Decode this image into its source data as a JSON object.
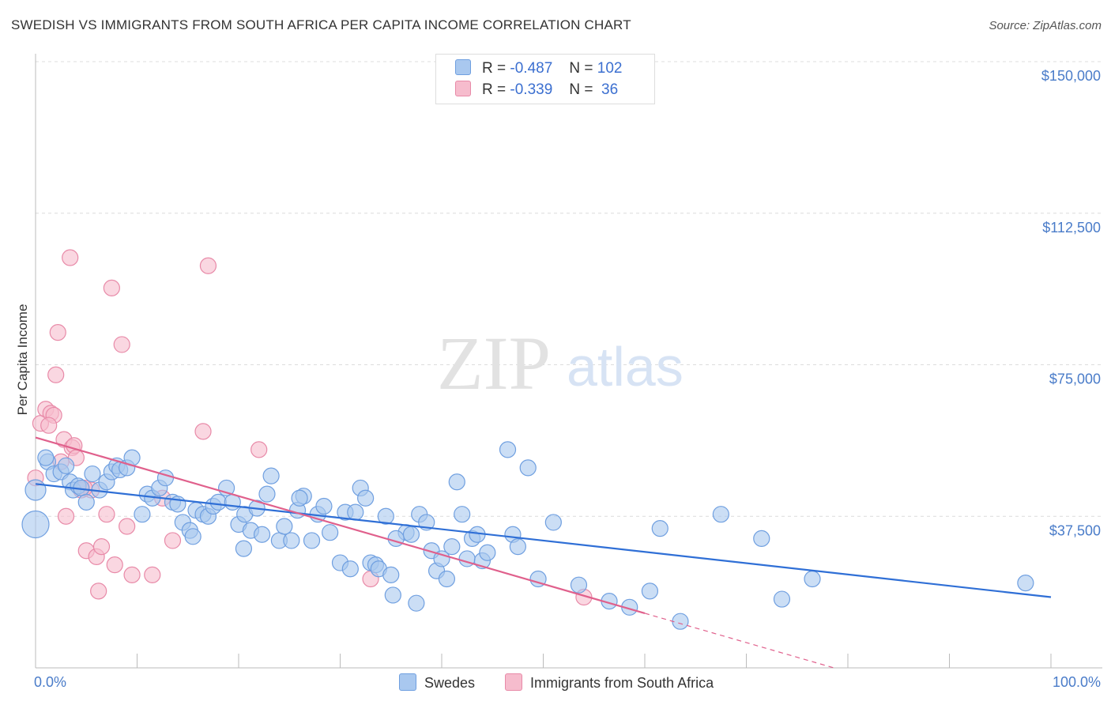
{
  "title": "SWEDISH VS IMMIGRANTS FROM SOUTH AFRICA PER CAPITA INCOME CORRELATION CHART",
  "source": "Source: ZipAtlas.com",
  "watermark": {
    "zip": "ZIP",
    "atlas": "atlas"
  },
  "legend": {
    "rows": [
      {
        "r_label": "R =",
        "r_value": "-0.487",
        "n_label": "N =",
        "n_value": "102"
      },
      {
        "r_label": "R =",
        "r_value": "-0.339",
        "n_label": "N =",
        "n_value": " 36"
      }
    ]
  },
  "colors": {
    "swedes_fill": "#a9c8ef",
    "swedes_stroke": "#6f9fe0",
    "swedes_line": "#2f6fd6",
    "sa_fill": "#f6bccd",
    "sa_stroke": "#e88aa8",
    "sa_line": "#e0608c",
    "tick_text": "#4a7cc9"
  },
  "chart_data": {
    "type": "scatter",
    "title": "SWEDISH VS IMMIGRANTS FROM SOUTH AFRICA PER CAPITA INCOME CORRELATION CHART",
    "xlabel": "",
    "ylabel": "Per Capita Income",
    "xlim": [
      0,
      100
    ],
    "ylim": [
      0,
      150000
    ],
    "x_tick_labels": [
      "0.0%",
      "100.0%"
    ],
    "y_ticks": [
      37500,
      75000,
      112500,
      150000
    ],
    "y_tick_labels": [
      "$37,500",
      "$75,000",
      "$112,500",
      "$150,000"
    ],
    "grid": true,
    "legend_position": "top-center",
    "series": [
      {
        "name": "Swedes",
        "points": [
          [
            1.2,
            51000
          ],
          [
            1.8,
            48000
          ],
          [
            2.5,
            48500
          ],
          [
            3.0,
            50000
          ],
          [
            3.4,
            46000
          ],
          [
            3.7,
            44000
          ],
          [
            4.2,
            45000
          ],
          [
            4.5,
            44500
          ],
          [
            5.0,
            41000
          ],
          [
            5.6,
            48000
          ],
          [
            6.3,
            44000
          ],
          [
            7.0,
            46000
          ],
          [
            7.5,
            48500
          ],
          [
            8.0,
            50000
          ],
          [
            8.3,
            49000
          ],
          [
            9.0,
            49500
          ],
          [
            9.5,
            52000
          ],
          [
            10.5,
            38000
          ],
          [
            11.0,
            43000
          ],
          [
            11.5,
            42000
          ],
          [
            12.2,
            44500
          ],
          [
            12.8,
            47000
          ],
          [
            13.5,
            41000
          ],
          [
            14.0,
            40500
          ],
          [
            14.5,
            36000
          ],
          [
            15.2,
            34000
          ],
          [
            15.8,
            39000
          ],
          [
            16.5,
            38000
          ],
          [
            17.0,
            37500
          ],
          [
            17.5,
            40000
          ],
          [
            18.0,
            41000
          ],
          [
            18.8,
            44500
          ],
          [
            19.4,
            41000
          ],
          [
            20.0,
            35500
          ],
          [
            20.6,
            38000
          ],
          [
            21.2,
            34000
          ],
          [
            21.8,
            39500
          ],
          [
            22.3,
            33000
          ],
          [
            22.8,
            43000
          ],
          [
            23.2,
            47500
          ],
          [
            24.0,
            31500
          ],
          [
            24.5,
            35000
          ],
          [
            25.2,
            31500
          ],
          [
            25.8,
            39000
          ],
          [
            26.4,
            42500
          ],
          [
            27.2,
            31500
          ],
          [
            27.8,
            38000
          ],
          [
            28.4,
            40000
          ],
          [
            29.0,
            33500
          ],
          [
            30.0,
            26000
          ],
          [
            30.5,
            38500
          ],
          [
            31.0,
            24500
          ],
          [
            31.5,
            38500
          ],
          [
            32.0,
            44500
          ],
          [
            32.5,
            42000
          ],
          [
            33.0,
            26000
          ],
          [
            33.5,
            25500
          ],
          [
            33.8,
            24500
          ],
          [
            34.5,
            37500
          ],
          [
            35.0,
            23000
          ],
          [
            35.2,
            18000
          ],
          [
            36.5,
            33500
          ],
          [
            37.0,
            33000
          ],
          [
            37.5,
            16000
          ],
          [
            37.8,
            38000
          ],
          [
            39.0,
            29000
          ],
          [
            39.5,
            24000
          ],
          [
            40.0,
            27000
          ],
          [
            40.5,
            22000
          ],
          [
            41.0,
            30000
          ],
          [
            41.5,
            46000
          ],
          [
            42.0,
            38000
          ],
          [
            42.5,
            27000
          ],
          [
            43.0,
            32000
          ],
          [
            44.0,
            26500
          ],
          [
            46.5,
            54000
          ],
          [
            47.0,
            33000
          ],
          [
            47.5,
            30000
          ],
          [
            48.5,
            49500
          ],
          [
            49.5,
            22000
          ],
          [
            51.0,
            36000
          ],
          [
            53.5,
            20500
          ],
          [
            56.5,
            16500
          ],
          [
            58.5,
            15000
          ],
          [
            60.5,
            19000
          ],
          [
            61.5,
            34500
          ],
          [
            63.5,
            11500
          ],
          [
            67.5,
            38000
          ],
          [
            71.5,
            32000
          ],
          [
            73.5,
            17000
          ],
          [
            76.5,
            22000
          ],
          [
            97.5,
            21000
          ],
          [
            0.0,
            44000
          ],
          [
            0.0,
            35500
          ],
          [
            1.0,
            52000
          ],
          [
            38.5,
            36000
          ],
          [
            43.5,
            33000
          ],
          [
            44.5,
            28500
          ],
          [
            26.0,
            42000
          ],
          [
            35.5,
            32000
          ],
          [
            20.5,
            29500
          ],
          [
            15.5,
            32500
          ]
        ],
        "trend": {
          "x0": 0,
          "y0": 45500,
          "x1": 100,
          "y1": 17500
        }
      },
      {
        "name": "Immigrants from South Africa",
        "points": [
          [
            0.5,
            60500
          ],
          [
            1.0,
            64000
          ],
          [
            1.5,
            63000
          ],
          [
            1.8,
            62500
          ],
          [
            2.0,
            72500
          ],
          [
            2.2,
            83000
          ],
          [
            2.5,
            51000
          ],
          [
            2.8,
            56500
          ],
          [
            3.0,
            37500
          ],
          [
            3.4,
            101500
          ],
          [
            3.6,
            54500
          ],
          [
            3.8,
            55000
          ],
          [
            4.0,
            52000
          ],
          [
            4.5,
            44000
          ],
          [
            5.0,
            29000
          ],
          [
            5.5,
            44000
          ],
          [
            6.0,
            27500
          ],
          [
            6.2,
            19000
          ],
          [
            6.5,
            30000
          ],
          [
            7.0,
            38000
          ],
          [
            7.5,
            94000
          ],
          [
            7.8,
            25500
          ],
          [
            8.5,
            80000
          ],
          [
            9.0,
            35000
          ],
          [
            9.5,
            23000
          ],
          [
            11.5,
            23000
          ],
          [
            12.5,
            42000
          ],
          [
            13.5,
            31500
          ],
          [
            16.5,
            58500
          ],
          [
            17.0,
            99500
          ],
          [
            22.0,
            54000
          ],
          [
            33.0,
            22000
          ],
          [
            54.0,
            17500
          ],
          [
            0.0,
            47000
          ],
          [
            1.3,
            60000
          ],
          [
            4.8,
            44500
          ]
        ],
        "trend": {
          "x0": 0,
          "y0": 57000,
          "x1": 60,
          "y1": 13500,
          "dash_x1": 100,
          "dash_y1": -15500
        }
      }
    ]
  },
  "bottom_legend": [
    "Swedes",
    "Immigrants from South Africa"
  ]
}
